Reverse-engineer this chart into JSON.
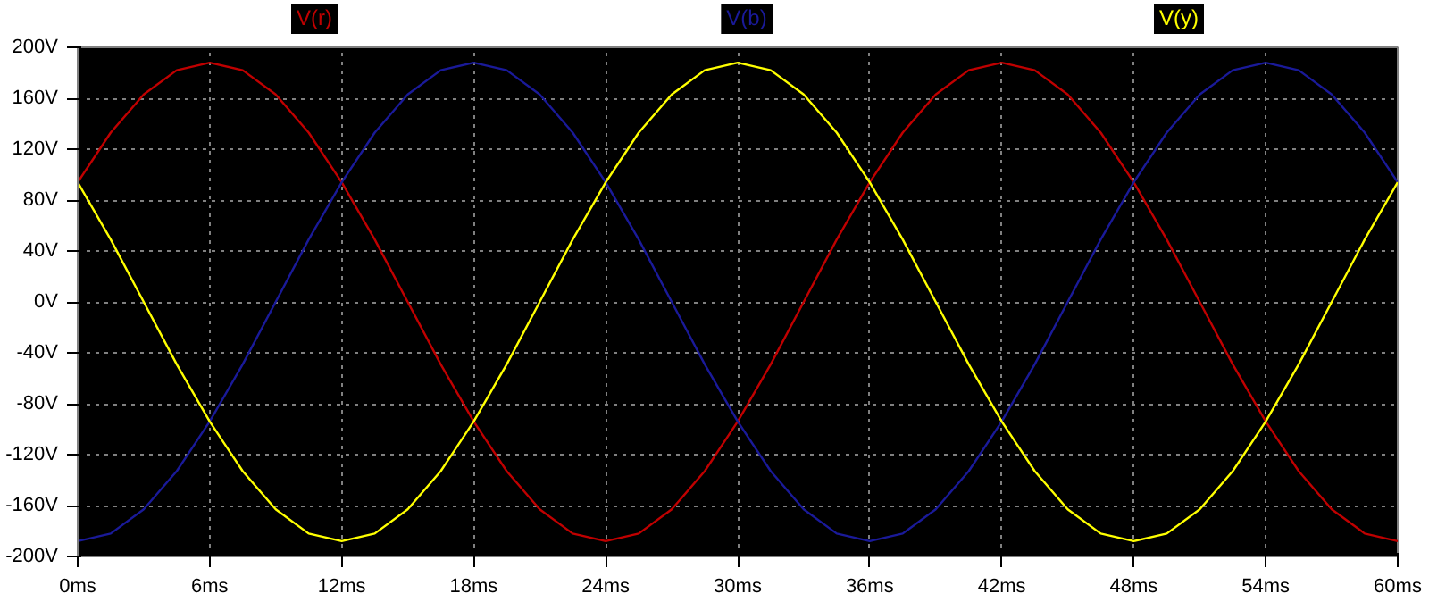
{
  "chart_data": {
    "type": "line",
    "x": [
      0,
      1.5,
      3,
      4.5,
      6,
      7.5,
      9,
      10.5,
      12,
      13.5,
      15,
      16.5,
      18,
      19.5,
      21,
      22.5,
      24,
      25.5,
      27,
      28.5,
      30,
      31.5,
      33,
      34.5,
      36,
      37.5,
      39,
      40.5,
      42,
      43.5,
      45,
      46.5,
      48,
      49.5,
      51,
      52.5,
      54,
      55.5,
      57,
      58.5,
      60
    ],
    "series": [
      {
        "name": "V(r)",
        "color": "#c00000",
        "values": [
          94,
          133,
          163,
          182,
          188,
          182,
          163,
          133,
          94,
          49,
          0,
          -49,
          -94,
          -133,
          -163,
          -182,
          -188,
          -182,
          -163,
          -133,
          -94,
          -49,
          0,
          49,
          94,
          133,
          163,
          182,
          188,
          182,
          163,
          133,
          94,
          49,
          0,
          -49,
          -94,
          -133,
          -163,
          -182,
          -188
        ]
      },
      {
        "name": "V(b)",
        "color": "#1a1a99",
        "values": [
          -188,
          -182,
          -163,
          -133,
          -94,
          -49,
          0,
          49,
          94,
          133,
          163,
          182,
          188,
          182,
          163,
          133,
          94,
          49,
          0,
          -49,
          -94,
          -133,
          -163,
          -182,
          -188,
          -182,
          -163,
          -133,
          -94,
          -49,
          0,
          49,
          94,
          133,
          163,
          182,
          188,
          182,
          163,
          133,
          94
        ]
      },
      {
        "name": "V(y)",
        "color": "#ffff00",
        "values": [
          94,
          49,
          0,
          -49,
          -94,
          -133,
          -163,
          -182,
          -188,
          -182,
          -163,
          -133,
          -94,
          -49,
          0,
          49,
          94,
          133,
          163,
          182,
          188,
          182,
          163,
          133,
          94,
          49,
          0,
          -49,
          -94,
          -133,
          -163,
          -182,
          -188,
          -182,
          -163,
          -133,
          -94,
          -49,
          0,
          49,
          94
        ]
      }
    ],
    "xlim": [
      0,
      60
    ],
    "xticks": [
      {
        "value": 0,
        "label": "0ms"
      },
      {
        "value": 6,
        "label": "6ms"
      },
      {
        "value": 12,
        "label": "12ms"
      },
      {
        "value": 18,
        "label": "18ms"
      },
      {
        "value": 24,
        "label": "24ms"
      },
      {
        "value": 30,
        "label": "30ms"
      },
      {
        "value": 36,
        "label": "36ms"
      },
      {
        "value": 42,
        "label": "42ms"
      },
      {
        "value": 48,
        "label": "48ms"
      },
      {
        "value": 54,
        "label": "54ms"
      },
      {
        "value": 60,
        "label": "60ms"
      }
    ],
    "ylim": [
      -200,
      200
    ],
    "yticks": [
      {
        "value": -200,
        "label": "-200V"
      },
      {
        "value": -160,
        "label": "-160V"
      },
      {
        "value": -120,
        "label": "-120V"
      },
      {
        "value": -80,
        "label": "-80V"
      },
      {
        "value": -40,
        "label": "-40V"
      },
      {
        "value": 0,
        "label": "0V"
      },
      {
        "value": 40,
        "label": "40V"
      },
      {
        "value": 80,
        "label": "80V"
      },
      {
        "value": 120,
        "label": "120V"
      },
      {
        "value": 160,
        "label": "160V"
      },
      {
        "value": 200,
        "label": "200V"
      }
    ],
    "grid": true,
    "line_style": "solid",
    "marker": "none"
  }
}
